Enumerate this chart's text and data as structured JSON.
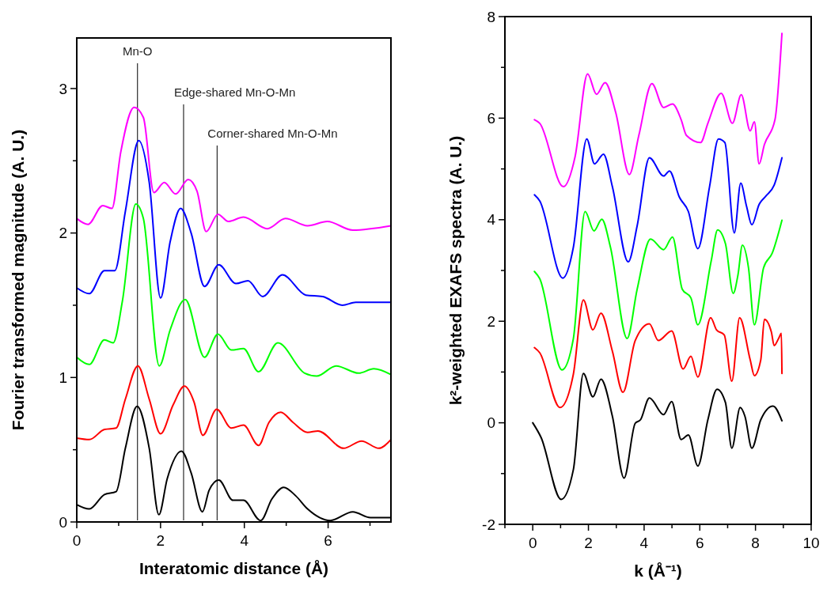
{
  "chart_data": [
    {
      "type": "line",
      "xlabel": "Interatomic distance (Å)",
      "ylabel": "Fourier transformed magnitude (A. U.)",
      "xlim": [
        0,
        7.5
      ],
      "ylim": [
        0,
        3.35
      ],
      "xticks": [
        0,
        {
          "value": 1,
          "label": null
        },
        2,
        {
          "value": 3,
          "label": null
        },
        4,
        {
          "value": 5,
          "label": null
        },
        6,
        {
          "value": 7,
          "label": null
        }
      ],
      "yticks": [
        0,
        {
          "value": 0.5,
          "label": null
        },
        1,
        {
          "value": 1.5,
          "label": null
        },
        2,
        {
          "value": 2.5,
          "label": null
        },
        3
      ],
      "grid": false,
      "line_style": "solid",
      "ref_lines": [
        {
          "axis": "x",
          "value": 1.45,
          "label": "Mn-O",
          "color": "#000000"
        },
        {
          "axis": "x",
          "value": 2.55,
          "label": "Edge-shared Mn-O-Mn",
          "color": "#000000"
        },
        {
          "axis": "x",
          "value": 3.35,
          "label": "Corner-shared Mn-O-Mn",
          "color": "#000000"
        }
      ],
      "series": [
        {
          "color": "#000000",
          "x": [
            0,
            0.3,
            0.66,
            0.94,
            1.16,
            1.44,
            1.73,
            1.96,
            2.16,
            2.5,
            2.73,
            3.0,
            3.16,
            3.39,
            3.73,
            3.98,
            4.39,
            4.66,
            4.94,
            5.23,
            5.51,
            6.05,
            6.59,
            7.01,
            7.5
          ],
          "values": [
            0.12,
            0.09,
            0.19,
            0.21,
            0.51,
            0.8,
            0.51,
            0.05,
            0.3,
            0.49,
            0.34,
            0.07,
            0.22,
            0.29,
            0.15,
            0.15,
            0.01,
            0.16,
            0.24,
            0.18,
            0.09,
            0.01,
            0.07,
            0.03,
            0.03
          ]
        },
        {
          "color": "#ff0000",
          "x": [
            0,
            0.3,
            0.66,
            0.94,
            1.16,
            1.46,
            1.73,
            2.0,
            2.3,
            2.57,
            2.8,
            3.01,
            3.34,
            3.69,
            3.98,
            4.34,
            4.59,
            4.87,
            5.16,
            5.51,
            5.76,
            6.37,
            6.8,
            7.21,
            7.5
          ],
          "values": [
            0.58,
            0.57,
            0.64,
            0.65,
            0.85,
            1.08,
            0.85,
            0.61,
            0.81,
            0.94,
            0.83,
            0.6,
            0.78,
            0.65,
            0.67,
            0.53,
            0.69,
            0.76,
            0.69,
            0.62,
            0.63,
            0.51,
            0.56,
            0.51,
            0.57
          ]
        },
        {
          "color": "#00ff00",
          "x": [
            0,
            0.3,
            0.66,
            0.87,
            1.09,
            1.41,
            1.59,
            1.97,
            2.23,
            2.59,
            3.05,
            3.37,
            3.69,
            3.98,
            4.34,
            4.8,
            5.44,
            5.73,
            6.19,
            6.73,
            7.09,
            7.5
          ],
          "values": [
            1.14,
            1.09,
            1.26,
            1.24,
            1.53,
            2.2,
            2.1,
            1.08,
            1.33,
            1.54,
            1.14,
            1.3,
            1.19,
            1.2,
            1.04,
            1.24,
            1.03,
            1.01,
            1.08,
            1.03,
            1.06,
            1.02
          ]
        },
        {
          "color": "#0000ff",
          "x": [
            0,
            0.3,
            0.66,
            0.91,
            1.16,
            1.48,
            1.73,
            2.0,
            2.23,
            2.48,
            2.73,
            3.05,
            3.39,
            3.8,
            4.09,
            4.44,
            4.91,
            5.47,
            5.87,
            6.34,
            6.66,
            7.5
          ],
          "values": [
            1.62,
            1.58,
            1.74,
            1.74,
            2.15,
            2.64,
            2.35,
            1.55,
            1.94,
            2.17,
            2.0,
            1.63,
            1.78,
            1.65,
            1.67,
            1.56,
            1.71,
            1.57,
            1.56,
            1.5,
            1.52,
            1.52
          ]
        },
        {
          "color": "#ff00ff",
          "x": [
            0,
            0.27,
            0.62,
            0.84,
            1.05,
            1.37,
            1.59,
            1.84,
            2.09,
            2.36,
            2.66,
            2.87,
            3.09,
            3.37,
            3.62,
            3.98,
            4.55,
            4.98,
            5.51,
            5.98,
            6.59,
            7.5
          ],
          "values": [
            2.1,
            2.06,
            2.19,
            2.17,
            2.56,
            2.87,
            2.8,
            2.28,
            2.35,
            2.27,
            2.37,
            2.29,
            2.01,
            2.13,
            2.08,
            2.11,
            2.03,
            2.1,
            2.05,
            2.08,
            2.02,
            2.05
          ]
        }
      ]
    },
    {
      "type": "line",
      "xlabel": "k (Å⁻¹)",
      "ylabel": "k²-weighted EXAFS spectra (A. U.)",
      "xlim": [
        -1,
        10
      ],
      "ylim": [
        -2,
        8
      ],
      "xticks": [
        {
          "value": -1,
          "label": null
        },
        0,
        {
          "value": 1,
          "label": null
        },
        2,
        {
          "value": 3,
          "label": null
        },
        4,
        {
          "value": 5,
          "label": null
        },
        6,
        {
          "value": 7,
          "label": null
        },
        8,
        {
          "value": 9,
          "label": null
        },
        10
      ],
      "yticks": [
        -2,
        {
          "value": -1,
          "label": null
        },
        0,
        {
          "value": 1,
          "label": null
        },
        2,
        {
          "value": 3,
          "label": null
        },
        4,
        {
          "value": 5,
          "label": null
        },
        6,
        {
          "value": 7,
          "label": null
        },
        8
      ],
      "grid": false,
      "line_style": "solid",
      "series": [
        {
          "color": "#000000",
          "x": [
            0,
            0.3,
            1.02,
            1.46,
            1.82,
            2.16,
            2.45,
            2.86,
            3.28,
            3.68,
            3.87,
            4.19,
            4.7,
            4.99,
            5.33,
            5.59,
            5.93,
            6.29,
            6.62,
            6.92,
            7.15,
            7.45,
            7.62,
            7.87,
            8.19,
            8.63,
            8.95
          ],
          "values": [
            0,
            -0.29,
            -1.51,
            -0.92,
            0.97,
            0.51,
            0.86,
            0.13,
            -1.09,
            -0.01,
            0.06,
            0.49,
            0.16,
            0.42,
            -0.33,
            -0.24,
            -0.85,
            0.06,
            0.66,
            0.4,
            -0.5,
            0.3,
            0.13,
            -0.5,
            0.06,
            0.33,
            0.04
          ]
        },
        {
          "color": "#ff0000",
          "x": [
            0.06,
            0.25,
            0.98,
            1.46,
            1.82,
            2.16,
            2.45,
            2.86,
            3.24,
            3.68,
            4.19,
            4.51,
            4.99,
            5.4,
            5.68,
            5.93,
            6.39,
            6.6,
            6.88,
            7.15,
            7.43,
            7.81,
            7.96,
            8.19,
            8.32,
            8.57,
            8.67,
            8.83,
            8.93,
            8.95
          ],
          "values": [
            1.48,
            1.38,
            0.3,
            0.96,
            2.42,
            1.83,
            2.16,
            1.41,
            0.6,
            1.62,
            1.95,
            1.62,
            1.81,
            1.06,
            1.31,
            0.9,
            2.07,
            1.83,
            1.73,
            0.82,
            2.07,
            1.24,
            0.93,
            1.24,
            2.04,
            1.79,
            1.52,
            1.66,
            1.76,
            0.97
          ]
        },
        {
          "color": "#00ff00",
          "x": [
            0.06,
            0.25,
            1.05,
            1.46,
            1.88,
            2.2,
            2.48,
            2.79,
            3.39,
            3.75,
            4.23,
            4.7,
            5.02,
            5.37,
            5.68,
            5.93,
            6.41,
            6.64,
            6.92,
            7.2,
            7.37,
            7.53,
            7.75,
            7.96,
            8.29,
            8.6,
            8.95
          ],
          "values": [
            2.98,
            2.84,
            1.04,
            1.66,
            4.16,
            3.78,
            4.01,
            3.46,
            1.66,
            2.63,
            3.62,
            3.41,
            3.66,
            2.63,
            2.46,
            1.93,
            3.19,
            3.8,
            3.53,
            2.55,
            2.91,
            3.5,
            3.05,
            1.93,
            3.05,
            3.34,
            3.99
          ]
        },
        {
          "color": "#0000ff",
          "x": [
            0.06,
            0.25,
            1.08,
            1.46,
            1.94,
            2.22,
            2.54,
            2.86,
            3.43,
            3.75,
            4.19,
            4.7,
            4.91,
            5.27,
            5.59,
            5.93,
            6.35,
            6.67,
            6.9,
            7.24,
            7.47,
            7.68,
            7.87,
            8.13,
            8.38,
            8.67,
            8.95
          ],
          "values": [
            4.49,
            4.37,
            2.85,
            3.46,
            5.59,
            5.1,
            5.29,
            4.65,
            3.17,
            3.88,
            5.22,
            4.86,
            4.96,
            4.44,
            4.16,
            3.43,
            4.65,
            5.59,
            5.52,
            3.74,
            4.72,
            4.26,
            3.9,
            4.3,
            4.47,
            4.68,
            5.22
          ]
        },
        {
          "color": "#ff00ff",
          "x": [
            0.06,
            0.25,
            1.1,
            1.52,
            1.97,
            2.29,
            2.6,
            2.98,
            3.47,
            3.81,
            4.28,
            4.7,
            5.02,
            5.33,
            5.52,
            6.03,
            6.29,
            6.77,
            7.17,
            7.49,
            7.81,
            7.96,
            8.13,
            8.32,
            8.7,
            8.95
          ],
          "values": [
            5.97,
            5.9,
            4.65,
            5.24,
            6.87,
            6.47,
            6.7,
            6.11,
            4.89,
            5.66,
            6.68,
            6.21,
            6.28,
            5.97,
            5.66,
            5.52,
            5.9,
            6.49,
            5.9,
            6.46,
            5.75,
            5.93,
            5.1,
            5.48,
            5.97,
            7.67
          ]
        }
      ]
    }
  ]
}
